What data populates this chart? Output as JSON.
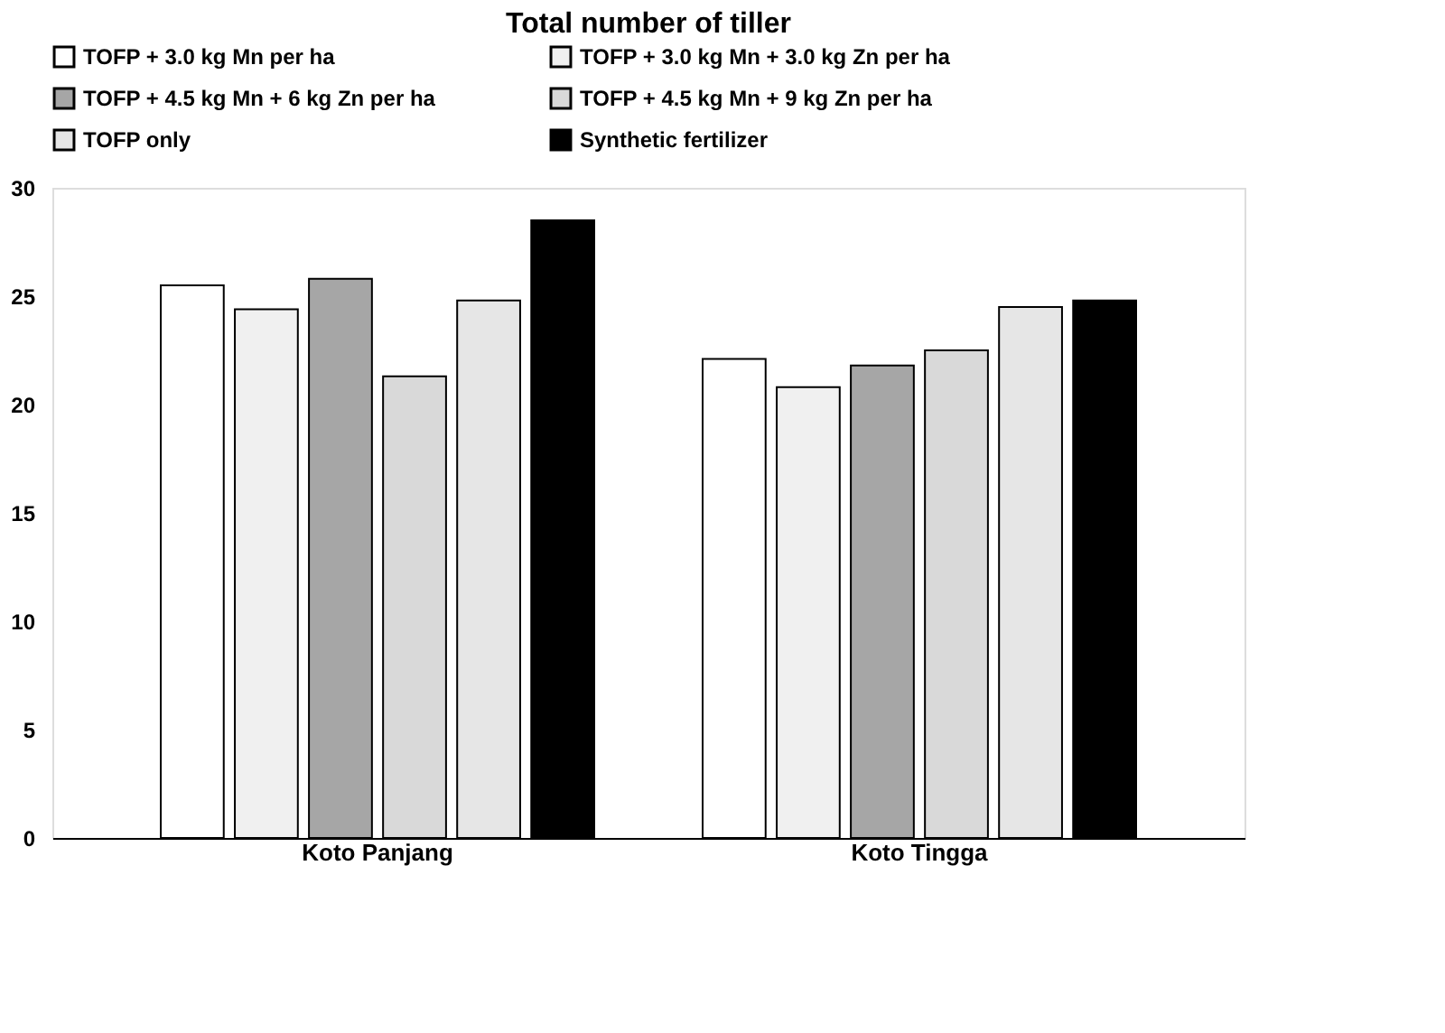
{
  "chart_data": {
    "type": "bar",
    "title": "Total number of tiller",
    "categories": [
      "Koto Panjang",
      "Koto Tingga"
    ],
    "series": [
      {
        "name": "TOFP + 3.0 kg Mn per ha",
        "color": "#ffffff",
        "values": [
          25.5,
          22.1
        ]
      },
      {
        "name": "TOFP + 3.0 kg Mn + 3.0 kg Zn per ha",
        "color": "#f0f0f0",
        "values": [
          24.4,
          20.8
        ]
      },
      {
        "name": "TOFP + 4.5 kg Mn + 6 kg Zn per ha",
        "color": "#a6a6a6",
        "values": [
          25.8,
          21.8
        ]
      },
      {
        "name": "TOFP + 4.5 kg Mn + 9 kg Zn per ha",
        "color": "#d9d9d9",
        "values": [
          21.3,
          22.5
        ]
      },
      {
        "name": "TOFP only",
        "color": "#e6e6e6",
        "values": [
          24.8,
          24.5
        ]
      },
      {
        "name": "Synthetic fertilizer",
        "color": "#000000",
        "values": [
          28.5,
          24.8
        ]
      }
    ],
    "ylim": [
      0,
      30
    ],
    "yticks": [
      0,
      5,
      10,
      15,
      20,
      25,
      30
    ],
    "grid": false,
    "legend": "top"
  }
}
